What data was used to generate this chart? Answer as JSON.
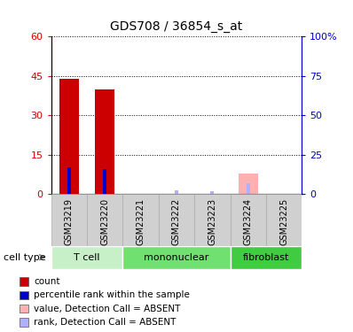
{
  "title": "GDS708 / 36854_s_at",
  "samples": [
    "GSM23219",
    "GSM23220",
    "GSM23221",
    "GSM23222",
    "GSM23223",
    "GSM23224",
    "GSM23225"
  ],
  "count_values": [
    44,
    40,
    0,
    0,
    0,
    0,
    0
  ],
  "rank_values": [
    17,
    16,
    0,
    0,
    0,
    0,
    0
  ],
  "absent_value": [
    0,
    0,
    0,
    0,
    0,
    8,
    0
  ],
  "absent_rank": [
    0,
    0,
    0,
    2.5,
    2.0,
    7,
    0
  ],
  "ylim_left": [
    0,
    60
  ],
  "ylim_right": [
    0,
    100
  ],
  "yticks_left": [
    0,
    15,
    30,
    45,
    60
  ],
  "yticks_right": [
    0,
    25,
    50,
    75,
    100
  ],
  "ytick_labels_left": [
    "0",
    "15",
    "30",
    "45",
    "60"
  ],
  "ytick_labels_right": [
    "0",
    "25",
    "50",
    "75",
    "100%"
  ],
  "color_count": "#cc0000",
  "color_rank": "#0000cc",
  "color_absent_value": "#ffb0b0",
  "color_absent_rank": "#b0b0ff",
  "cell_type_groups": [
    {
      "label": "T cell",
      "start": 0,
      "end": 2,
      "color": "#c8f0c8"
    },
    {
      "label": "mononuclear",
      "start": 2,
      "end": 5,
      "color": "#70e070"
    },
    {
      "label": "fibroblast",
      "start": 5,
      "end": 7,
      "color": "#40cc40"
    }
  ],
  "legend_items": [
    {
      "label": "count",
      "color": "#cc0000"
    },
    {
      "label": "percentile rank within the sample",
      "color": "#0000cc"
    },
    {
      "label": "value, Detection Call = ABSENT",
      "color": "#ffb0b0"
    },
    {
      "label": "rank, Detection Call = ABSENT",
      "color": "#b0b0ff"
    }
  ],
  "grid_color": "#000000",
  "bar_width": 0.55,
  "cell_type_label": "cell type",
  "tick_bg_color": "#d0d0d0",
  "tick_border_color": "#aaaaaa"
}
